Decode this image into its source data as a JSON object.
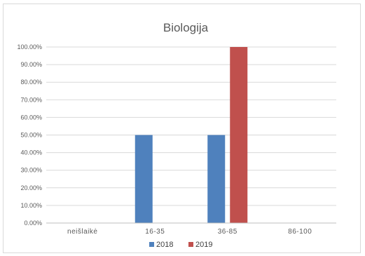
{
  "chart_data": {
    "type": "bar",
    "title": "Biologija",
    "xlabel": "",
    "ylabel": "",
    "categories": [
      "neišlaikė",
      "16-35",
      "36-85",
      "86-100"
    ],
    "series": [
      {
        "name": "2018",
        "color": "#4f81bd",
        "values": [
          0,
          50,
          50,
          0
        ]
      },
      {
        "name": "2019",
        "color": "#c0504d",
        "values": [
          0,
          0,
          100,
          0
        ]
      }
    ],
    "ylim": [
      0,
      100
    ],
    "y_ticks": [
      "0.00%",
      "10.00%",
      "20.00%",
      "30.00%",
      "40.00%",
      "50.00%",
      "60.00%",
      "70.00%",
      "80.00%",
      "90.00%",
      "100.00%"
    ],
    "grid": true,
    "legend": "bottom",
    "colors": {
      "grid": "#d9d9d9",
      "axis": "#bfbfbf"
    }
  }
}
